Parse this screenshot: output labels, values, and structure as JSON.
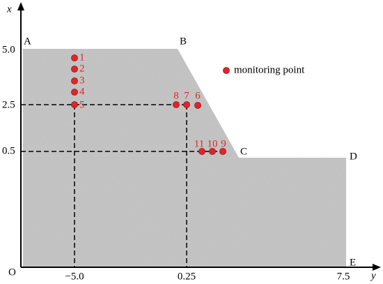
{
  "axes": {
    "vertical_label": "x",
    "horizontal_label": "y",
    "origin": "O",
    "vertical_ticks": [
      "5.0",
      "2.5",
      "0.5"
    ],
    "horizontal_ticks": [
      "−5.0",
      "0.25",
      "7.5"
    ]
  },
  "vertices": [
    "A",
    "B",
    "C",
    "D",
    "E"
  ],
  "points": [
    "1",
    "2",
    "3",
    "4",
    "5",
    "6",
    "7",
    "8",
    "9",
    "10",
    "11"
  ],
  "legend": "monitoring point"
}
